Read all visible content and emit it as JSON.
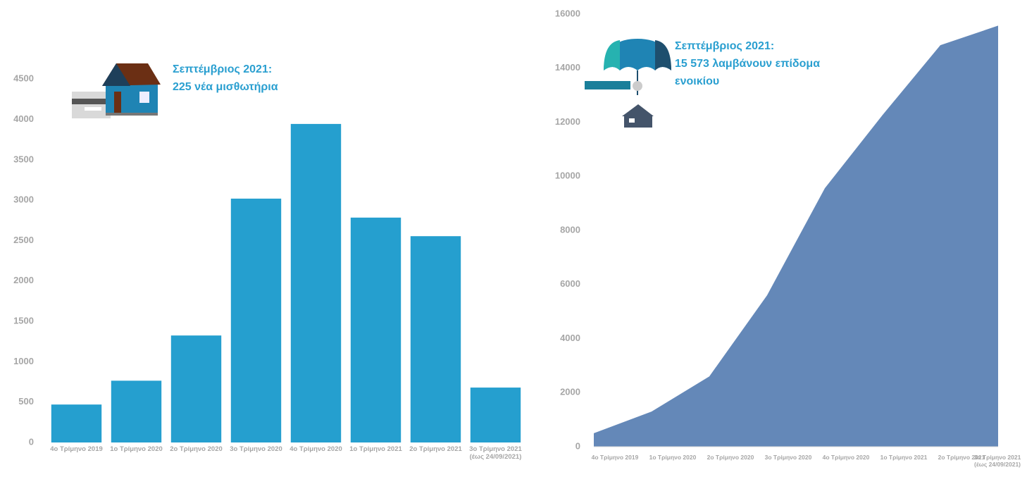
{
  "chart_data": [
    {
      "type": "bar",
      "annotation": [
        "Σεπτέμβριος 2021:",
        "225 νέα μισθωτήρια"
      ],
      "categories": [
        "4ο Τρίμηνο 2019",
        "1ο Τρίμηνο 2020",
        "2ο Τρίμηνο 2020",
        "3ο Τρίμηνο 2020",
        "4ο Τρίμηνο 2020",
        "1ο Τρίμηνο 2021",
        "2ο Τρίμηνο 2021",
        "3ο Τρίμηνο 2021 (έως 24/09/2021)"
      ],
      "values": [
        470,
        765,
        1325,
        3020,
        3945,
        2785,
        2555,
        680
      ],
      "color": "#259fcf",
      "ylim": [
        0,
        5000
      ],
      "yticks": [
        0,
        500,
        1000,
        1500,
        2000,
        2500,
        3000,
        3500,
        4000,
        4500
      ],
      "grid": false
    },
    {
      "type": "area",
      "annotation": [
        "Σεπτέμβριος 2021:",
        "15 573 λαμβάνουν επίδομα ενοικίου"
      ],
      "categories": [
        "4ο Τρίμηνο 2019",
        "1ο Τρίμηνο 2020",
        "2ο Τρίμηνο 2020",
        "3ο Τρίμηνο 2020",
        "4ο Τρίμηνο 2020",
        "1ο Τρίμηνο 2021",
        "2ο Τρίμηνο 2021",
        "3ο Τρίμηνο 2021 (έως 24/09/2021)"
      ],
      "values": [
        500,
        1300,
        2600,
        5600,
        9560,
        12270,
        14850,
        15573
      ],
      "color": "#6488b8",
      "ylim": [
        0,
        16000
      ],
      "yticks": [
        0,
        2000,
        4000,
        6000,
        8000,
        10000,
        12000,
        14000,
        16000
      ],
      "grid": false
    }
  ]
}
